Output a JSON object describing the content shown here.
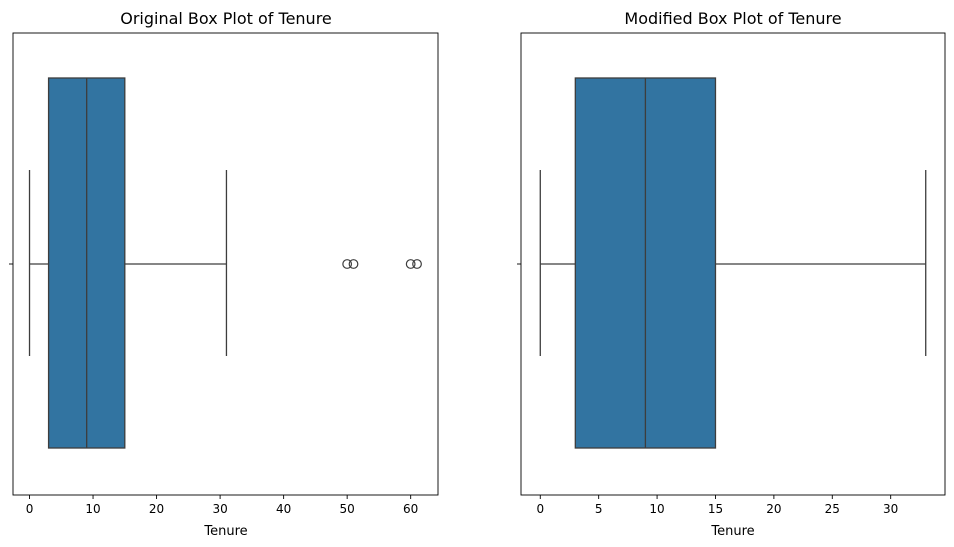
{
  "chart_data": [
    {
      "type": "box",
      "title": "Original Box Plot of Tenure",
      "xlabel": "Tenure",
      "xlim": [
        -2.6,
        64.3
      ],
      "xticks": [
        0,
        10,
        20,
        30,
        40,
        50,
        60
      ],
      "box": {
        "whisker_low": 0,
        "q1": 3,
        "median": 9,
        "q3": 15,
        "whisker_high": 31
      },
      "outliers": [
        50,
        51,
        60,
        61
      ],
      "color": "#3274a1"
    },
    {
      "type": "box",
      "title": "Modified Box Plot of Tenure",
      "xlabel": "Tenure",
      "xlim": [
        -1.65,
        34.65
      ],
      "xticks": [
        0,
        5,
        10,
        15,
        20,
        25,
        30
      ],
      "box": {
        "whisker_low": 0,
        "q1": 3,
        "median": 9,
        "q3": 15,
        "whisker_high": 33
      },
      "outliers": [],
      "color": "#3274a1"
    }
  ]
}
